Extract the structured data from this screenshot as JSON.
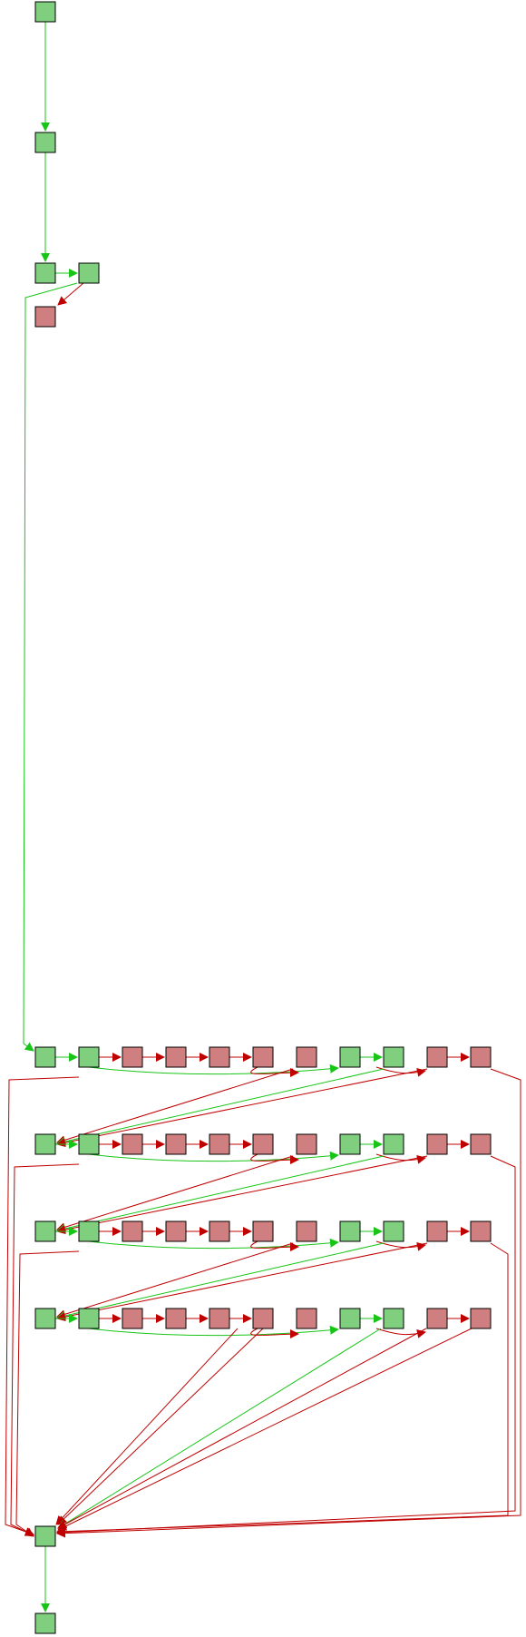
{
  "colors": {
    "pass_fill": "#7fcf7f",
    "fail_fill": "#cf7f7f",
    "pass_edge": "#16c516",
    "fail_edge": "#c00000",
    "node_border": "#000000",
    "background": "#ffffff"
  },
  "legend": {
    "pass_node": "green-node",
    "fail_node": "red-node"
  }
}
